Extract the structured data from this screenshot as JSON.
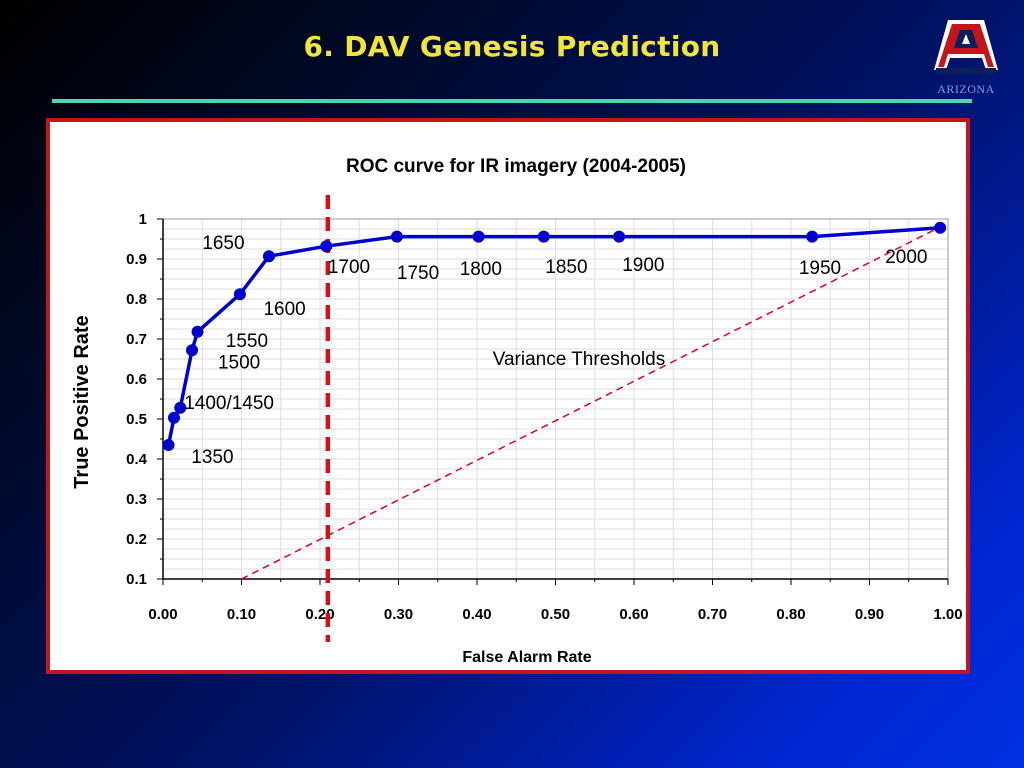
{
  "slide": {
    "title": "6.  DAV Genesis Prediction",
    "logo_letter": "A",
    "logo_text": "ARIZONA"
  },
  "colors": {
    "title": "#f2e53a",
    "rule": "#4fd3b0",
    "frame": "#c4151c",
    "series": "#0000cc",
    "reference": "#e3001b",
    "threshold": "#d3111a"
  },
  "chart_data": {
    "type": "line",
    "title": "ROC curve for IR imagery (2004-2005)",
    "xlabel": "False Alarm Rate",
    "ylabel": "True Positive Rate",
    "xlim": [
      0,
      1
    ],
    "ylim": [
      0.1,
      1
    ],
    "x_ticks": [
      "0.00",
      "0.10",
      "0.20",
      "0.30",
      "0.40",
      "0.50",
      "0.60",
      "0.70",
      "0.80",
      "0.90",
      "1.00"
    ],
    "y_ticks": [
      "0.1",
      "0.2",
      "0.3",
      "0.4",
      "0.5",
      "0.6",
      "0.7",
      "0.8",
      "0.9",
      "1"
    ],
    "grid": true,
    "series": [
      {
        "name": "Variance Thresholds",
        "x": [
          0.007,
          0.014,
          0.022,
          0.037,
          0.044,
          0.098,
          0.135,
          0.208,
          0.298,
          0.402,
          0.485,
          0.581,
          0.827,
          0.99
        ],
        "y": [
          0.435,
          0.503,
          0.528,
          0.672,
          0.718,
          0.812,
          0.907,
          0.932,
          0.956,
          0.956,
          0.956,
          0.956,
          0.956,
          0.978
        ]
      }
    ],
    "reference_line": {
      "x": [
        0.1,
        0.99
      ],
      "y": [
        0.1,
        0.98
      ]
    },
    "threshold_line_x": 0.21,
    "annotations": [
      {
        "text": "1350",
        "x": 0.036,
        "y": 0.39
      },
      {
        "text": "1400/1450",
        "x": 0.027,
        "y": 0.525
      },
      {
        "text": "1500",
        "x": 0.07,
        "y": 0.626
      },
      {
        "text": "1550",
        "x": 0.08,
        "y": 0.68
      },
      {
        "text": "1600",
        "x": 0.128,
        "y": 0.76
      },
      {
        "text": "1650",
        "x": 0.05,
        "y": 0.925
      },
      {
        "text": "1700",
        "x": 0.21,
        "y": 0.865
      },
      {
        "text": "1750",
        "x": 0.298,
        "y": 0.85
      },
      {
        "text": "1800",
        "x": 0.378,
        "y": 0.86
      },
      {
        "text": "1850",
        "x": 0.487,
        "y": 0.865
      },
      {
        "text": "1900",
        "x": 0.585,
        "y": 0.87
      },
      {
        "text": "1950",
        "x": 0.81,
        "y": 0.863
      },
      {
        "text": "2000",
        "x": 0.92,
        "y": 0.89
      },
      {
        "text": "Variance Thresholds",
        "x": 0.42,
        "y": 0.635
      }
    ]
  }
}
